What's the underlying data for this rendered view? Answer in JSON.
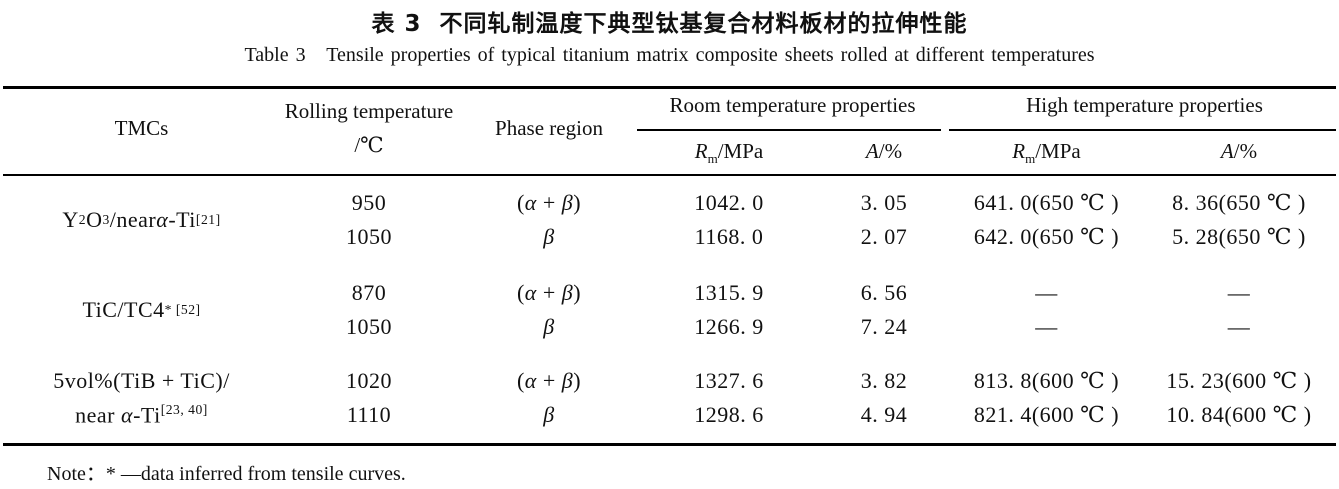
{
  "titles": {
    "zh": "表 3  不同轧制温度下典型钛基复合材料板材的拉伸性能",
    "en": "Table 3   Tensile properties of typical titanium matrix composite sheets rolled at different temperatures"
  },
  "note": "Note：* —data inferred from tensile curves.",
  "table": {
    "headers": {
      "tmcs": "TMCs",
      "rolling_line1": "Rolling temperature",
      "rolling_line2": "/℃",
      "phase": "Phase region",
      "room_group": "Room temperature properties",
      "high_group": "High temperature properties",
      "rm": [
        [
          "i",
          "R"
        ],
        [
          "sub",
          "m"
        ],
        [
          "t",
          "/MPa"
        ]
      ],
      "a": [
        [
          "i",
          "A"
        ],
        [
          "t",
          "/%"
        ]
      ]
    },
    "groups": [
      {
        "label": [
          [
            "t",
            "Y"
          ],
          [
            "sub",
            "2"
          ],
          [
            "t",
            "O"
          ],
          [
            "sub",
            "3"
          ],
          [
            "t",
            "/near "
          ],
          [
            "i",
            "α"
          ],
          [
            "t",
            "-Ti"
          ],
          [
            "sup",
            "[21]"
          ]
        ],
        "rows": [
          {
            "temp": "950",
            "phase": [
              [
                "t",
                "("
              ],
              [
                "i",
                "α"
              ],
              [
                "t",
                " + "
              ],
              [
                "i",
                "β"
              ],
              [
                "t",
                ")"
              ]
            ],
            "rm_room": "1042. 0",
            "a_room": "3. 05",
            "rm_high": "641. 0(650 ℃ )",
            "a_high": "8. 36(650 ℃ )"
          },
          {
            "temp": "1050",
            "phase": [
              [
                "i",
                "β"
              ]
            ],
            "rm_room": "1168. 0",
            "a_room": "2. 07",
            "rm_high": "642. 0(650 ℃ )",
            "a_high": "5. 28(650 ℃ )"
          }
        ]
      },
      {
        "label": [
          [
            "t",
            "TiC/TC4"
          ],
          [
            "sup",
            " * [52]"
          ]
        ],
        "rows": [
          {
            "temp": "870",
            "phase": [
              [
                "t",
                "("
              ],
              [
                "i",
                "α"
              ],
              [
                "t",
                " + "
              ],
              [
                "i",
                "β"
              ],
              [
                "t",
                ")"
              ]
            ],
            "rm_room": "1315. 9",
            "a_room": "6. 56",
            "rm_high": "—",
            "a_high": "—"
          },
          {
            "temp": "1050",
            "phase": [
              [
                "i",
                "β"
              ]
            ],
            "rm_room": "1266. 9",
            "a_room": "7. 24",
            "rm_high": "—",
            "a_high": "—"
          }
        ]
      },
      {
        "label_line1": [
          [
            "t",
            "5vol%(TiB + TiC)/"
          ]
        ],
        "label_line2": [
          [
            "t",
            "near "
          ],
          [
            "i",
            "α"
          ],
          [
            "t",
            "-Ti"
          ],
          [
            "sup",
            "[23, 40]"
          ]
        ],
        "rows": [
          {
            "temp": "1020",
            "phase": [
              [
                "t",
                "("
              ],
              [
                "i",
                "α"
              ],
              [
                "t",
                " + "
              ],
              [
                "i",
                "β"
              ],
              [
                "t",
                ")"
              ]
            ],
            "rm_room": "1327. 6",
            "a_room": "3. 82",
            "rm_high": "813. 8(600 ℃ )",
            "a_high": "15. 23(600 ℃ )"
          },
          {
            "temp": "1110",
            "phase": [
              [
                "i",
                "β"
              ]
            ],
            "rm_room": "1298. 6",
            "a_room": "4. 94",
            "rm_high": "821. 4(600 ℃ )",
            "a_high": "10. 84(600 ℃ )"
          }
        ]
      }
    ]
  }
}
